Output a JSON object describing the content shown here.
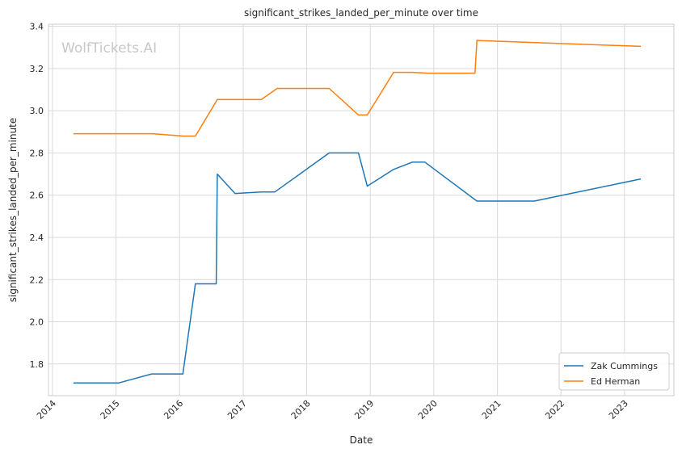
{
  "watermark": "WolfTickets.AI",
  "chart_data": {
    "type": "line",
    "title": "significant_strikes_landed_per_minute over time",
    "xlabel": "Date",
    "ylabel": "significant_strikes_landed_per_minute",
    "xlim": [
      "2013-12-09",
      "2023-10-12"
    ],
    "ylim": [
      1.65,
      3.41
    ],
    "x_ticks": [
      "2014",
      "2015",
      "2016",
      "2017",
      "2018",
      "2019",
      "2020",
      "2021",
      "2022",
      "2023"
    ],
    "y_ticks": [
      "1.8",
      "2.0",
      "2.2",
      "2.4",
      "2.6",
      "2.8",
      "3.0",
      "3.2",
      "3.4"
    ],
    "grid": true,
    "legend_position": "lower-right",
    "series": [
      {
        "name": "Zak Cummings",
        "color": "#1f77b4",
        "points": [
          {
            "x": "2014-05-01",
            "y": 1.71
          },
          {
            "x": "2015-01-15",
            "y": 1.71
          },
          {
            "x": "2015-07-25",
            "y": 1.753
          },
          {
            "x": "2016-01-20",
            "y": 1.753
          },
          {
            "x": "2016-04-01",
            "y": 2.18
          },
          {
            "x": "2016-07-30",
            "y": 2.18
          },
          {
            "x": "2016-08-05",
            "y": 2.7
          },
          {
            "x": "2016-11-15",
            "y": 2.608
          },
          {
            "x": "2017-04-15",
            "y": 2.615
          },
          {
            "x": "2017-07-01",
            "y": 2.615
          },
          {
            "x": "2018-05-10",
            "y": 2.8
          },
          {
            "x": "2018-10-25",
            "y": 2.8
          },
          {
            "x": "2018-12-15",
            "y": 2.643
          },
          {
            "x": "2019-05-15",
            "y": 2.722
          },
          {
            "x": "2019-09-01",
            "y": 2.757
          },
          {
            "x": "2019-11-10",
            "y": 2.757
          },
          {
            "x": "2020-09-05",
            "y": 2.572
          },
          {
            "x": "2021-08-01",
            "y": 2.572
          },
          {
            "x": "2023-04-05",
            "y": 2.677
          }
        ]
      },
      {
        "name": "Ed Herman",
        "color": "#ff7f0e",
        "points": [
          {
            "x": "2014-05-01",
            "y": 2.891
          },
          {
            "x": "2015-08-01",
            "y": 2.891
          },
          {
            "x": "2016-01-20",
            "y": 2.88
          },
          {
            "x": "2016-04-01",
            "y": 2.88
          },
          {
            "x": "2016-08-05",
            "y": 3.053
          },
          {
            "x": "2017-04-15",
            "y": 3.053
          },
          {
            "x": "2017-07-15",
            "y": 3.106
          },
          {
            "x": "2018-05-10",
            "y": 3.106
          },
          {
            "x": "2018-10-25",
            "y": 2.98
          },
          {
            "x": "2018-12-15",
            "y": 2.98
          },
          {
            "x": "2019-05-15",
            "y": 3.182
          },
          {
            "x": "2019-09-01",
            "y": 3.182
          },
          {
            "x": "2019-12-01",
            "y": 3.178
          },
          {
            "x": "2020-08-25",
            "y": 3.178
          },
          {
            "x": "2020-09-05",
            "y": 3.333
          },
          {
            "x": "2023-04-05",
            "y": 3.305
          }
        ]
      }
    ]
  }
}
